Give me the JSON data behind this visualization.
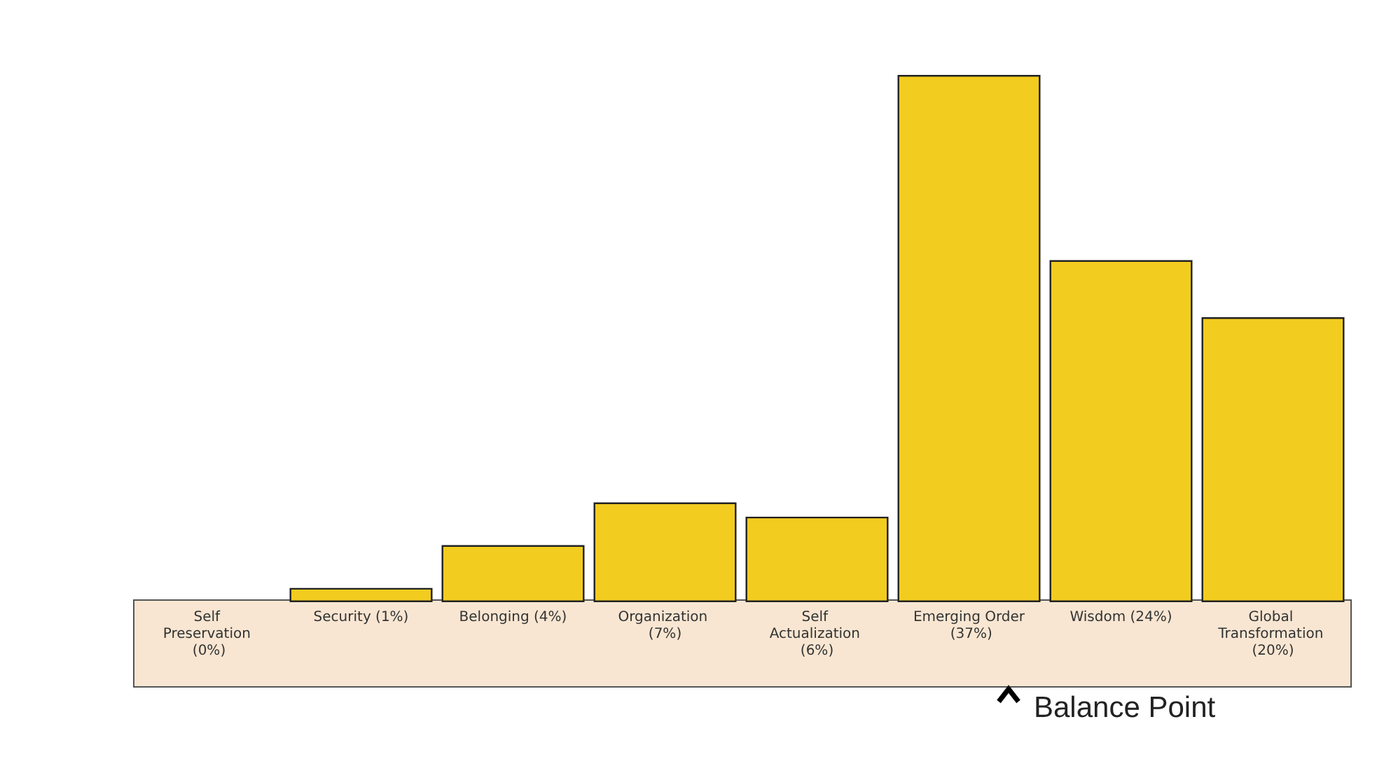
{
  "chart_data": {
    "type": "bar",
    "categories": [
      "Self Preservation",
      "Security",
      "Belonging",
      "Organization",
      "Self Actualization",
      "Emerging Order",
      "Wisdom",
      "Global Transformation"
    ],
    "values": [
      0,
      1,
      4,
      7,
      6,
      37,
      24,
      20
    ],
    "value_labels": [
      "(0%)",
      "(1%)",
      "(4%)",
      "(7%)",
      "(6%)",
      "(37%)",
      "(24%)",
      "(20%)"
    ],
    "color": "#f2cc1f",
    "annotations": [
      "Balance Point"
    ],
    "grid": false
  }
}
